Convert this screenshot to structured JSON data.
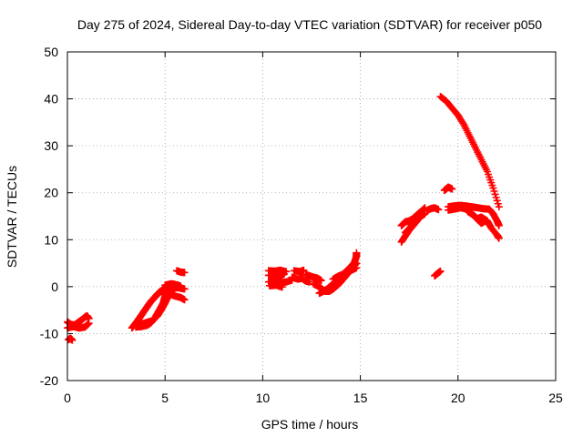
{
  "chart_data": {
    "type": "scatter",
    "title": "Day 275 of 2024, Sidereal Day-to-day VTEC variation (SDTVAR) for receiver p050",
    "xlabel": "GPS time / hours",
    "ylabel": "SDTVAR / TECUs",
    "xlim": [
      0,
      25
    ],
    "ylim": [
      -20,
      50
    ],
    "xticks": [
      0,
      5,
      10,
      15,
      20,
      25
    ],
    "yticks": [
      -20,
      -10,
      0,
      10,
      20,
      30,
      40,
      50
    ],
    "grid": true,
    "marker": "plus",
    "color": "#ff0000",
    "series": [
      {
        "segments": [
          [
            [
              0.0,
              -7.5
            ],
            [
              0.15,
              -8.0
            ],
            [
              0.35,
              -8.2
            ],
            [
              0.55,
              -7.6
            ],
            [
              0.75,
              -7.0
            ],
            [
              0.9,
              -6.5
            ],
            [
              1.0,
              -6.2
            ],
            [
              1.1,
              -6.8
            ]
          ],
          [
            [
              0.0,
              -8.8
            ],
            [
              0.3,
              -8.5
            ],
            [
              0.6,
              -8.8
            ],
            [
              0.9,
              -8.6
            ],
            [
              1.1,
              -7.8
            ]
          ],
          [
            [
              0.05,
              -11.3
            ],
            [
              0.15,
              -11.0
            ],
            [
              0.25,
              -11.4
            ]
          ],
          [
            [
              3.3,
              -8.8
            ],
            [
              3.5,
              -7.8
            ],
            [
              3.7,
              -6.6
            ],
            [
              3.9,
              -5.4
            ],
            [
              4.1,
              -4.2
            ],
            [
              4.3,
              -3.0
            ],
            [
              4.5,
              -2.2
            ],
            [
              4.7,
              -1.2
            ],
            [
              4.9,
              -0.6
            ],
            [
              5.1,
              -0.3
            ],
            [
              5.4,
              -0.5
            ],
            [
              5.6,
              -0.2
            ],
            [
              5.9,
              -0.4
            ]
          ],
          [
            [
              3.4,
              -8.3
            ],
            [
              3.6,
              -7.2
            ],
            [
              3.8,
              -6.0
            ],
            [
              4.0,
              -4.8
            ],
            [
              4.2,
              -3.6
            ],
            [
              4.4,
              -2.6
            ],
            [
              4.6,
              -1.6
            ],
            [
              4.8,
              -1.0
            ],
            [
              5.0,
              -0.8
            ],
            [
              5.2,
              -0.2
            ],
            [
              5.4,
              0.2
            ],
            [
              5.6,
              0.4
            ],
            [
              5.8,
              0.1
            ]
          ],
          [
            [
              3.5,
              -8.6
            ],
            [
              3.8,
              -8.5
            ],
            [
              4.1,
              -8.2
            ],
            [
              4.3,
              -7.6
            ],
            [
              4.5,
              -6.5
            ],
            [
              4.7,
              -5.0
            ],
            [
              4.9,
              -3.5
            ],
            [
              5.0,
              -2.0
            ],
            [
              5.1,
              -1.0
            ]
          ],
          [
            [
              3.7,
              -8.0
            ],
            [
              4.0,
              -7.7
            ],
            [
              4.3,
              -7.3
            ],
            [
              4.6,
              -6.3
            ],
            [
              4.8,
              -5.0
            ],
            [
              5.0,
              -3.5
            ],
            [
              5.2,
              -1.8
            ]
          ],
          [
            [
              5.0,
              0.3
            ],
            [
              5.3,
              0.6
            ],
            [
              5.5,
              0.5
            ],
            [
              5.8,
              -0.3
            ],
            [
              6.0,
              -0.5
            ]
          ],
          [
            [
              5.2,
              -1.5
            ],
            [
              5.5,
              -2.0
            ],
            [
              5.8,
              -2.3
            ],
            [
              6.0,
              -2.8
            ]
          ],
          [
            [
              5.6,
              3.4
            ],
            [
              5.8,
              3.1
            ],
            [
              6.0,
              3.0
            ]
          ],
          [
            [
              10.3,
              3.4
            ],
            [
              10.6,
              3.3
            ],
            [
              10.9,
              3.5
            ],
            [
              11.2,
              3.2
            ]
          ],
          [
            [
              10.3,
              2.4
            ],
            [
              10.6,
              2.6
            ],
            [
              10.9,
              2.3
            ],
            [
              11.1,
              2.7
            ]
          ],
          [
            [
              10.3,
              1.0
            ],
            [
              10.6,
              1.2
            ],
            [
              10.9,
              0.8
            ],
            [
              11.2,
              1.0
            ],
            [
              11.5,
              1.4
            ]
          ],
          [
            [
              10.35,
              0.2
            ],
            [
              10.7,
              0.3
            ],
            [
              11.0,
              -0.1
            ]
          ],
          [
            [
              11.5,
              2.0
            ],
            [
              11.8,
              1.6
            ],
            [
              12.0,
              1.8
            ],
            [
              12.2,
              1.2
            ],
            [
              12.4,
              1.0
            ]
          ],
          [
            [
              11.6,
              3.4
            ],
            [
              11.9,
              3.2
            ],
            [
              12.1,
              3.5
            ]
          ],
          [
            [
              12.2,
              2.6
            ],
            [
              12.4,
              2.3
            ],
            [
              12.6,
              2.0
            ],
            [
              12.8,
              1.8
            ],
            [
              13.0,
              1.3
            ]
          ],
          [
            [
              12.6,
              0.6
            ],
            [
              12.8,
              0.2
            ],
            [
              13.0,
              -0.4
            ],
            [
              13.2,
              -1.0
            ],
            [
              13.4,
              -1.0
            ],
            [
              13.6,
              -0.5
            ],
            [
              13.8,
              0.2
            ],
            [
              14.0,
              1.0
            ],
            [
              14.2,
              2.0
            ],
            [
              14.4,
              3.0
            ],
            [
              14.6,
              4.0
            ],
            [
              14.8,
              5.0
            ]
          ],
          [
            [
              12.9,
              -1.4
            ],
            [
              13.1,
              -1.0
            ],
            [
              13.3,
              -0.5
            ],
            [
              13.5,
              0.2
            ],
            [
              13.7,
              1.0
            ],
            [
              13.9,
              1.8
            ],
            [
              14.1,
              2.6
            ],
            [
              14.3,
              3.4
            ],
            [
              14.5,
              4.2
            ],
            [
              14.7,
              5.2
            ],
            [
              14.8,
              6.5
            ],
            [
              14.8,
              7.2
            ]
          ],
          [
            [
              13.6,
              1.6
            ],
            [
              13.9,
              2.3
            ],
            [
              14.2,
              2.8
            ],
            [
              14.5,
              3.4
            ],
            [
              14.8,
              4.0
            ]
          ],
          [
            [
              17.1,
              9.5
            ],
            [
              17.3,
              10.8
            ],
            [
              17.5,
              12.0
            ],
            [
              17.7,
              13.0
            ],
            [
              17.9,
              14.0
            ],
            [
              18.1,
              15.0
            ],
            [
              18.3,
              15.5
            ]
          ],
          [
            [
              17.1,
              13.0
            ],
            [
              17.3,
              13.8
            ],
            [
              17.5,
              14.0
            ],
            [
              17.7,
              14.5
            ],
            [
              17.9,
              15.3
            ],
            [
              18.1,
              16.0
            ],
            [
              18.3,
              16.5
            ]
          ],
          [
            [
              17.3,
              11.5
            ],
            [
              17.5,
              12.3
            ],
            [
              17.7,
              13.5
            ],
            [
              17.9,
              14.5
            ],
            [
              18.1,
              15.8
            ],
            [
              18.3,
              16.8
            ]
          ],
          [
            [
              18.4,
              16.2
            ],
            [
              18.6,
              16.6
            ],
            [
              18.8,
              16.8
            ],
            [
              19.0,
              16.4
            ]
          ],
          [
            [
              18.8,
              2.3
            ],
            [
              18.95,
              2.8
            ],
            [
              19.1,
              3.3
            ]
          ],
          [
            [
              19.1,
              40.5
            ],
            [
              19.4,
              39.5
            ],
            [
              19.7,
              38.0
            ],
            [
              20.0,
              36.5
            ],
            [
              20.3,
              34.5
            ],
            [
              20.6,
              32.0
            ],
            [
              20.9,
              29.5
            ],
            [
              21.2,
              27.0
            ],
            [
              21.5,
              24.5
            ],
            [
              21.8,
              21.0
            ],
            [
              22.1,
              17.0
            ]
          ],
          [
            [
              19.3,
              20.5
            ],
            [
              19.5,
              21.2
            ],
            [
              19.7,
              20.8
            ]
          ],
          [
            [
              19.5,
              17.0
            ],
            [
              19.8,
              17.2
            ],
            [
              20.1,
              17.3
            ],
            [
              20.4,
              17.2
            ],
            [
              20.7,
              17.0
            ],
            [
              21.0,
              16.8
            ],
            [
              21.3,
              16.6
            ],
            [
              21.6,
              16.5
            ],
            [
              21.8,
              15.5
            ],
            [
              22.0,
              14.0
            ],
            [
              22.1,
              13.0
            ]
          ],
          [
            [
              19.5,
              16.3
            ],
            [
              19.8,
              16.5
            ],
            [
              20.1,
              16.8
            ],
            [
              20.4,
              16.6
            ],
            [
              20.7,
              15.5
            ],
            [
              21.0,
              14.5
            ],
            [
              21.2,
              14.8
            ],
            [
              21.5,
              14.0
            ],
            [
              21.7,
              12.5
            ],
            [
              22.0,
              11.0
            ],
            [
              22.1,
              10.3
            ]
          ],
          [
            [
              20.5,
              16.0
            ],
            [
              20.8,
              15.2
            ],
            [
              21.0,
              14.3
            ],
            [
              21.2,
              13.5
            ],
            [
              21.4,
              14.0
            ]
          ]
        ]
      }
    ]
  }
}
